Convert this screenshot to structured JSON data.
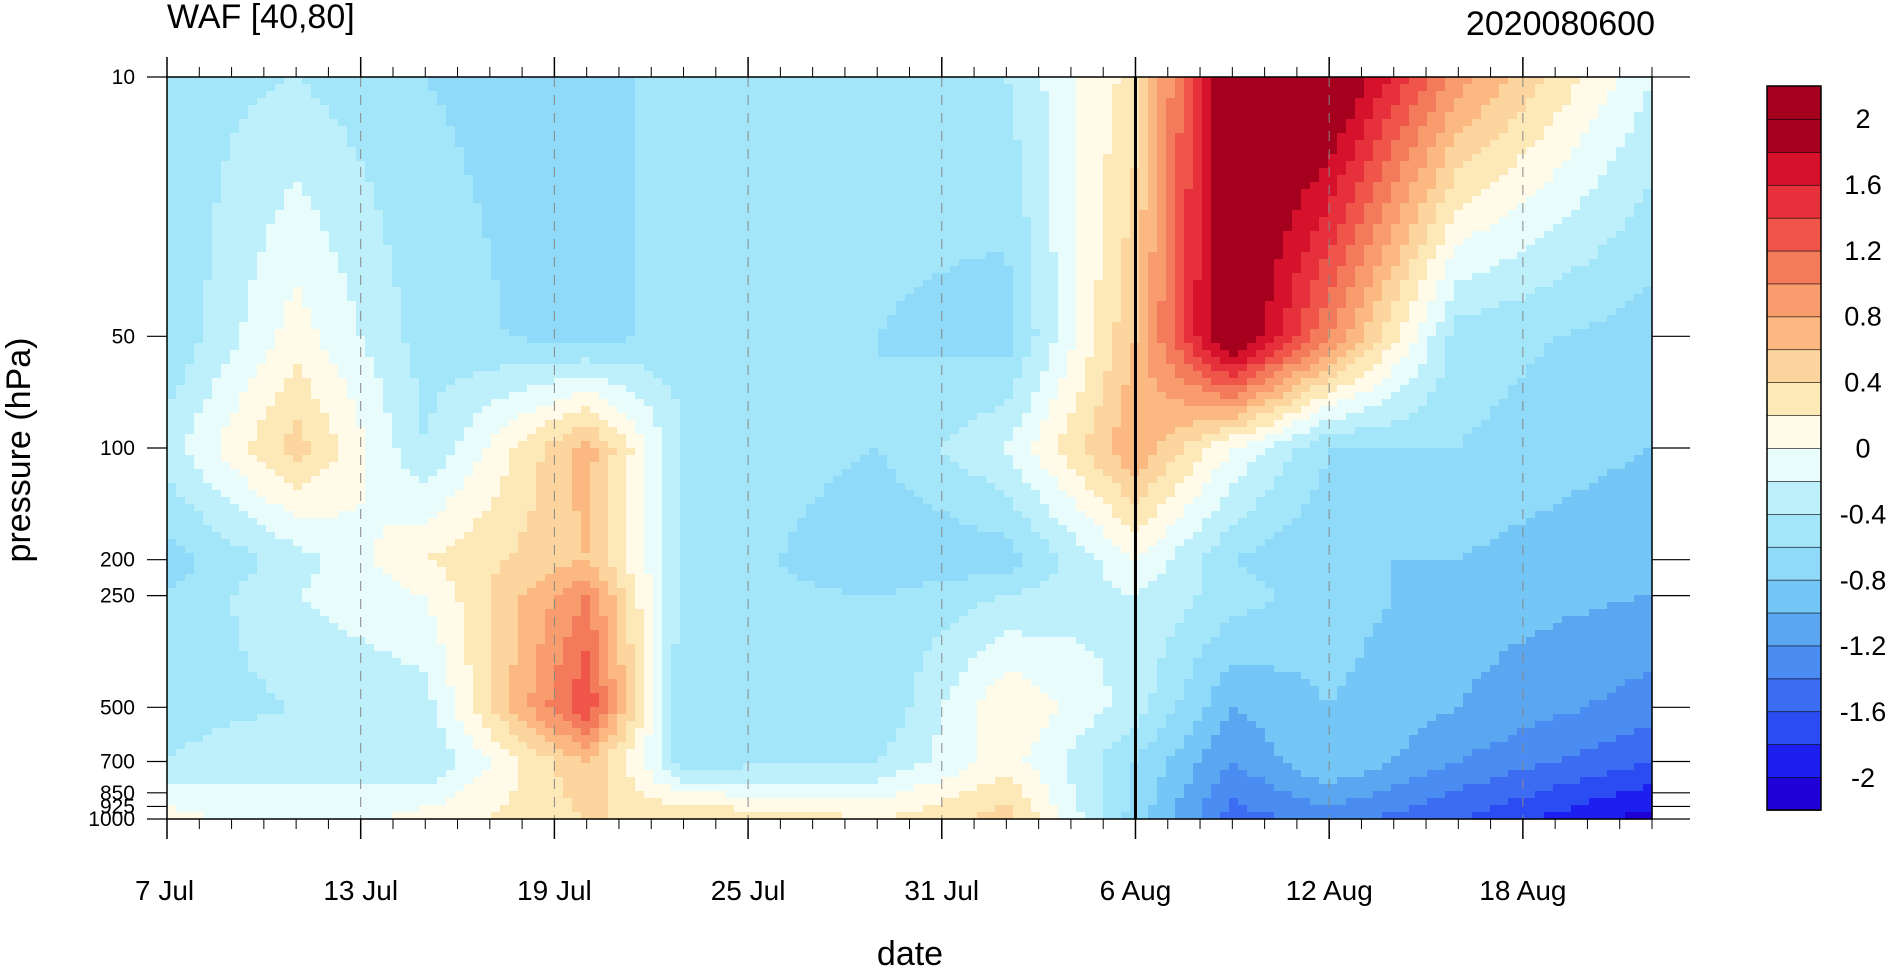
{
  "chart_data": {
    "type": "heatmap",
    "title_left": "WAF [40,80]",
    "title_right": "2020080600",
    "xlabel": "date",
    "ylabel": "pressure (hPa)",
    "x_ticks": [
      "7 Jul",
      "13 Jul",
      "19 Jul",
      "25 Jul",
      "31 Jul",
      "6 Aug",
      "12 Aug",
      "18 Aug"
    ],
    "x_range": [
      "7 Jul",
      "22 Aug"
    ],
    "marker_date": "6 Aug",
    "y_ticks": [
      10,
      50,
      100,
      200,
      250,
      500,
      700,
      850,
      925,
      1000
    ],
    "y_tick_labels": [
      "10",
      "50",
      "100",
      "200",
      "250",
      "500",
      "700",
      "850",
      "925",
      "1000"
    ],
    "y_scale": "log",
    "y_direction": "reversed",
    "colorbar": {
      "levels": [
        -2.2,
        -2,
        -1.8,
        -1.6,
        -1.4,
        -1.2,
        -1,
        -0.8,
        -0.6,
        -0.4,
        -0.2,
        0,
        0.2,
        0.4,
        0.6,
        0.8,
        1,
        1.2,
        1.4,
        1.6,
        1.8,
        2,
        2.2
      ],
      "colors": [
        "#1f00d6",
        "#1d1ff0",
        "#2a4cf2",
        "#3c6cf2",
        "#4a8cf2",
        "#5aa6f0",
        "#74c6f6",
        "#8edaf8",
        "#a3e6fa",
        "#bdf0fa",
        "#e8fcfc",
        "#fffbe8",
        "#fde8b8",
        "#fcd49e",
        "#fbb880",
        "#f89c6e",
        "#f47a5c",
        "#ef5548",
        "#e6303b",
        "#d6112c",
        "#a6001f",
        "#a6001f"
      ],
      "labels": [
        "2",
        "1.6",
        "1.2",
        "0.8",
        "0.4",
        "0",
        "-0.4",
        "-0.8",
        "-1.2",
        "-1.6",
        "-2"
      ]
    },
    "field": {
      "x_days": [
        0,
        4,
        8,
        13,
        16,
        22,
        26,
        30,
        33,
        36,
        40,
        46
      ],
      "pressure": [
        10,
        50,
        100,
        200,
        250,
        500,
        700,
        1000
      ],
      "values": [
        [
          -0.5,
          -0.4,
          -0.6,
          -0.7,
          -0.5,
          -0.5,
          -0.4,
          0.3,
          2.2,
          2.2,
          0.9,
          -0.2
        ],
        [
          -0.6,
          0.1,
          -0.5,
          -0.7,
          -0.5,
          -0.6,
          -0.7,
          0.6,
          2.2,
          1.0,
          -0.5,
          -0.7
        ],
        [
          -0.3,
          0.5,
          -0.4,
          0.7,
          -0.4,
          -0.6,
          -0.2,
          0.8,
          0.0,
          -0.6,
          -0.6,
          -0.8
        ],
        [
          -0.7,
          -0.3,
          0.2,
          0.6,
          -0.4,
          -0.8,
          -0.7,
          0.0,
          -0.6,
          -0.8,
          -0.8,
          -1.0
        ],
        [
          -0.6,
          -0.2,
          0.0,
          1.0,
          -0.5,
          -0.6,
          -0.4,
          -0.2,
          -0.5,
          -0.7,
          -0.9,
          -1.0
        ],
        [
          -0.5,
          -0.4,
          -0.3,
          1.4,
          -0.6,
          -0.6,
          0.2,
          -0.3,
          -1.0,
          -0.8,
          -1.0,
          -1.3
        ],
        [
          -0.4,
          -0.2,
          -0.4,
          0.6,
          -0.5,
          -0.4,
          0.1,
          -0.6,
          -1.2,
          -0.8,
          -1.2,
          -1.6
        ],
        [
          0.1,
          -0.2,
          0.1,
          0.4,
          0.4,
          0.2,
          0.5,
          -0.7,
          -1.5,
          -1.3,
          -1.6,
          -2.1
        ]
      ]
    }
  }
}
